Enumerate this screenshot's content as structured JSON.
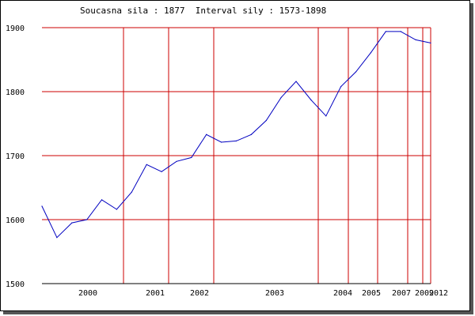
{
  "chart_data": {
    "type": "line",
    "title": "Soucasna sila : 1877  Interval sily : 1573-1898",
    "xlabel": "",
    "ylabel": "",
    "ylim": [
      1500,
      1900
    ],
    "y_ticks": [
      1500,
      1600,
      1700,
      1800,
      1900
    ],
    "x_tick_labels": [
      "2000",
      "2001",
      "2002",
      "2003",
      "2004",
      "2005",
      "2007",
      "2009",
      "2012"
    ],
    "grid": true,
    "line_color": "#0000c0",
    "grid_color": "#cc0000",
    "series": [
      {
        "values": [
          1621,
          1572,
          1595,
          1600,
          1631,
          1616,
          1643,
          1686,
          1675,
          1691,
          1697,
          1733,
          1721,
          1723,
          1733,
          1755,
          1791,
          1816,
          1787,
          1762,
          1808,
          1831,
          1861,
          1894,
          1894,
          1881,
          1876
        ]
      }
    ]
  }
}
